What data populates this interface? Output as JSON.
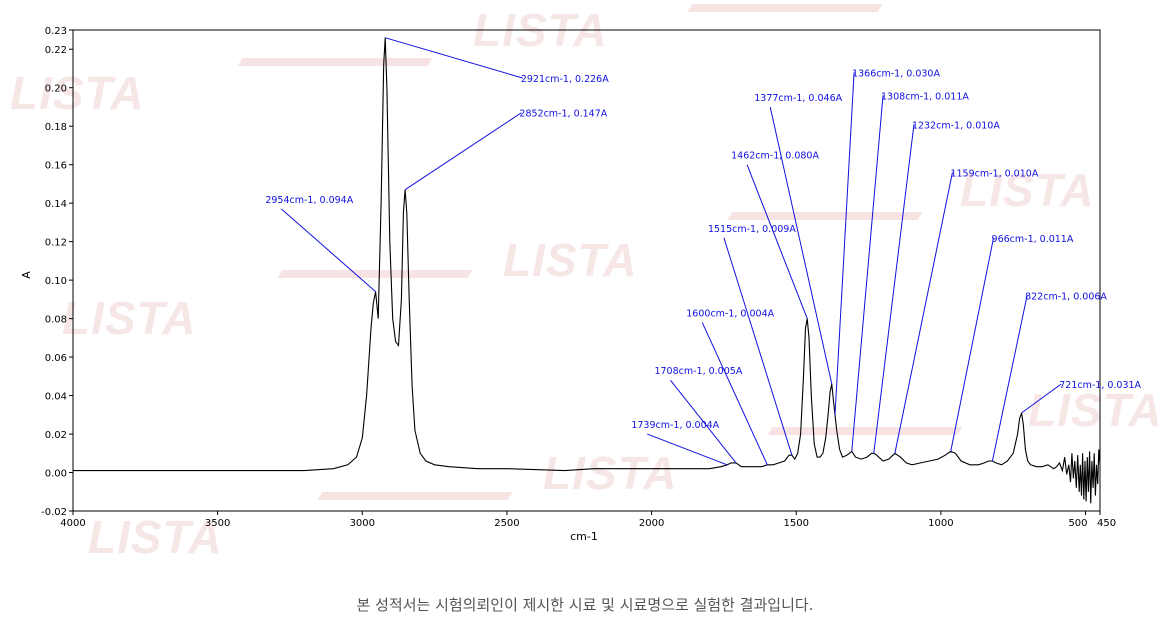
{
  "watermark": "LISTA",
  "footer_note": "본 성적서는 시험의뢰인이 제시한 시료 및 시료명으로 실험한 결과입니다.",
  "colors": {
    "spectrum": "#000000",
    "annotation": "#1010e0",
    "axis": "#000000"
  },
  "chart_data": {
    "type": "line",
    "xlabel": "cm-1",
    "ylabel": "A",
    "xlim": [
      4000,
      450
    ],
    "ylim": [
      -0.02,
      0.23
    ],
    "x_ticks": [
      {
        "value": 4000,
        "label": "4000"
      },
      {
        "value": 3500,
        "label": "3500"
      },
      {
        "value": 3000,
        "label": "3000"
      },
      {
        "value": 2500,
        "label": "2500"
      },
      {
        "value": 2000,
        "label": "2000"
      },
      {
        "value": 1500,
        "label": "1500"
      },
      {
        "value": 1000,
        "label": "1000"
      },
      {
        "value": 500,
        "label": "500"
      },
      {
        "value": 450,
        "label": "450"
      }
    ],
    "y_ticks": [
      {
        "value": 0.23,
        "label": "0.23"
      },
      {
        "value": 0.22,
        "label": "0.22"
      },
      {
        "value": 0.2,
        "label": "0.20"
      },
      {
        "value": 0.18,
        "label": "0.18"
      },
      {
        "value": 0.16,
        "label": "0.16"
      },
      {
        "value": 0.14,
        "label": "0.14"
      },
      {
        "value": 0.12,
        "label": "0.12"
      },
      {
        "value": 0.1,
        "label": "0.10"
      },
      {
        "value": 0.08,
        "label": "0.08"
      },
      {
        "value": 0.06,
        "label": "0.06"
      },
      {
        "value": 0.04,
        "label": "0.04"
      },
      {
        "value": 0.02,
        "label": "0.02"
      },
      {
        "value": 0.0,
        "label": "0.00"
      },
      {
        "value": -0.02,
        "label": "-0.02"
      }
    ],
    "spectrum": [
      [
        4000,
        0.001
      ],
      [
        3800,
        0.001
      ],
      [
        3600,
        0.001
      ],
      [
        3400,
        0.001
      ],
      [
        3200,
        0.001
      ],
      [
        3100,
        0.002
      ],
      [
        3050,
        0.004
      ],
      [
        3020,
        0.008
      ],
      [
        3000,
        0.018
      ],
      [
        2985,
        0.04
      ],
      [
        2970,
        0.075
      ],
      [
        2962,
        0.088
      ],
      [
        2954,
        0.094
      ],
      [
        2945,
        0.08
      ],
      [
        2935,
        0.14
      ],
      [
        2926,
        0.212
      ],
      [
        2921,
        0.226
      ],
      [
        2915,
        0.2
      ],
      [
        2905,
        0.12
      ],
      [
        2895,
        0.08
      ],
      [
        2885,
        0.068
      ],
      [
        2875,
        0.066
      ],
      [
        2865,
        0.09
      ],
      [
        2858,
        0.135
      ],
      [
        2852,
        0.147
      ],
      [
        2846,
        0.135
      ],
      [
        2838,
        0.09
      ],
      [
        2828,
        0.045
      ],
      [
        2818,
        0.022
      ],
      [
        2800,
        0.01
      ],
      [
        2780,
        0.006
      ],
      [
        2750,
        0.004
      ],
      [
        2700,
        0.003
      ],
      [
        2600,
        0.002
      ],
      [
        2500,
        0.002
      ],
      [
        2300,
        0.001
      ],
      [
        2200,
        0.002
      ],
      [
        2100,
        0.002
      ],
      [
        2000,
        0.002
      ],
      [
        1900,
        0.002
      ],
      [
        1800,
        0.002
      ],
      [
        1760,
        0.003
      ],
      [
        1739,
        0.004
      ],
      [
        1725,
        0.005
      ],
      [
        1708,
        0.005
      ],
      [
        1690,
        0.003
      ],
      [
        1650,
        0.003
      ],
      [
        1620,
        0.003
      ],
      [
        1600,
        0.004
      ],
      [
        1580,
        0.004
      ],
      [
        1560,
        0.005
      ],
      [
        1540,
        0.006
      ],
      [
        1525,
        0.009
      ],
      [
        1515,
        0.009
      ],
      [
        1505,
        0.007
      ],
      [
        1495,
        0.01
      ],
      [
        1485,
        0.02
      ],
      [
        1475,
        0.05
      ],
      [
        1468,
        0.075
      ],
      [
        1462,
        0.08
      ],
      [
        1456,
        0.07
      ],
      [
        1448,
        0.04
      ],
      [
        1438,
        0.015
      ],
      [
        1428,
        0.008
      ],
      [
        1418,
        0.008
      ],
      [
        1408,
        0.01
      ],
      [
        1398,
        0.018
      ],
      [
        1390,
        0.03
      ],
      [
        1383,
        0.042
      ],
      [
        1377,
        0.046
      ],
      [
        1372,
        0.038
      ],
      [
        1366,
        0.03
      ],
      [
        1360,
        0.022
      ],
      [
        1350,
        0.012
      ],
      [
        1340,
        0.008
      ],
      [
        1325,
        0.009
      ],
      [
        1308,
        0.011
      ],
      [
        1295,
        0.008
      ],
      [
        1275,
        0.007
      ],
      [
        1255,
        0.008
      ],
      [
        1240,
        0.01
      ],
      [
        1232,
        0.01
      ],
      [
        1222,
        0.009
      ],
      [
        1200,
        0.006
      ],
      [
        1180,
        0.007
      ],
      [
        1159,
        0.01
      ],
      [
        1140,
        0.008
      ],
      [
        1120,
        0.005
      ],
      [
        1100,
        0.004
      ],
      [
        1070,
        0.005
      ],
      [
        1040,
        0.006
      ],
      [
        1010,
        0.007
      ],
      [
        985,
        0.009
      ],
      [
        966,
        0.011
      ],
      [
        950,
        0.01
      ],
      [
        930,
        0.006
      ],
      [
        900,
        0.004
      ],
      [
        870,
        0.004
      ],
      [
        850,
        0.005
      ],
      [
        835,
        0.006
      ],
      [
        822,
        0.006
      ],
      [
        810,
        0.005
      ],
      [
        790,
        0.004
      ],
      [
        770,
        0.006
      ],
      [
        750,
        0.01
      ],
      [
        735,
        0.02
      ],
      [
        728,
        0.028
      ],
      [
        721,
        0.031
      ],
      [
        715,
        0.025
      ],
      [
        708,
        0.012
      ],
      [
        700,
        0.006
      ],
      [
        690,
        0.004
      ],
      [
        670,
        0.003
      ],
      [
        650,
        0.003
      ],
      [
        630,
        0.004
      ],
      [
        610,
        0.002
      ],
      [
        600,
        0.003
      ],
      [
        590,
        0.005
      ],
      [
        580,
        0.001
      ],
      [
        572,
        0.008
      ],
      [
        565,
        -0.001
      ],
      [
        558,
        0.004
      ],
      [
        552,
        -0.005
      ],
      [
        547,
        0.01
      ],
      [
        542,
        -0.003
      ],
      [
        537,
        0.006
      ],
      [
        532,
        -0.008
      ],
      [
        527,
        0.009
      ],
      [
        522,
        -0.01
      ],
      [
        518,
        0.004
      ],
      [
        514,
        -0.012
      ],
      [
        510,
        0.01
      ],
      [
        506,
        -0.014
      ],
      [
        502,
        0.006
      ],
      [
        498,
        -0.015
      ],
      [
        494,
        0.008
      ],
      [
        490,
        -0.01
      ],
      [
        486,
        0.011
      ],
      [
        482,
        -0.016
      ],
      [
        478,
        0.006
      ],
      [
        474,
        -0.008
      ],
      [
        470,
        0.01
      ],
      [
        466,
        -0.012
      ],
      [
        462,
        0.004
      ],
      [
        458,
        -0.006
      ],
      [
        454,
        0.012
      ],
      [
        450,
        0.004
      ]
    ],
    "annotations": [
      {
        "x": 2954,
        "y": 0.094,
        "label": "2954cm-1, 0.094A",
        "tx": 3280,
        "ty": 0.137
      },
      {
        "x": 2921,
        "y": 0.226,
        "label": "2921cm-1, 0.226A",
        "tx": 2445,
        "ty": 0.205
      },
      {
        "x": 2852,
        "y": 0.147,
        "label": "2852cm-1, 0.147A",
        "tx": 2450,
        "ty": 0.187
      },
      {
        "x": 1739,
        "y": 0.004,
        "label": "1739cm-1, 0.004A",
        "tx": 2015,
        "ty": 0.02
      },
      {
        "x": 1708,
        "y": 0.005,
        "label": "1708cm-1, 0.005A",
        "tx": 1935,
        "ty": 0.048
      },
      {
        "x": 1600,
        "y": 0.004,
        "label": "1600cm-1, 0.004A",
        "tx": 1825,
        "ty": 0.078
      },
      {
        "x": 1515,
        "y": 0.009,
        "label": "1515cm-1, 0.009A",
        "tx": 1750,
        "ty": 0.122
      },
      {
        "x": 1462,
        "y": 0.08,
        "label": "1462cm-1, 0.080A",
        "tx": 1670,
        "ty": 0.16
      },
      {
        "x": 1377,
        "y": 0.046,
        "label": "1377cm-1, 0.046A",
        "tx": 1590,
        "ty": 0.19
      },
      {
        "x": 1366,
        "y": 0.03,
        "label": "1366cm-1, 0.030A",
        "tx": 1300,
        "ty": 0.208
      },
      {
        "x": 1308,
        "y": 0.011,
        "label": "1308cm-1, 0.011A",
        "tx": 1200,
        "ty": 0.196
      },
      {
        "x": 1232,
        "y": 0.01,
        "label": "1232cm-1, 0.010A",
        "tx": 1093,
        "ty": 0.181
      },
      {
        "x": 1159,
        "y": 0.01,
        "label": "1159cm-1, 0.010A",
        "tx": 960,
        "ty": 0.156
      },
      {
        "x": 966,
        "y": 0.011,
        "label": "966cm-1, 0.011A",
        "tx": 818,
        "ty": 0.122
      },
      {
        "x": 822,
        "y": 0.006,
        "label": "822cm-1, 0.006A",
        "tx": 702,
        "ty": 0.092
      },
      {
        "x": 721,
        "y": 0.031,
        "label": "721cm-1, 0.031A",
        "tx": 584,
        "ty": 0.046
      }
    ]
  }
}
